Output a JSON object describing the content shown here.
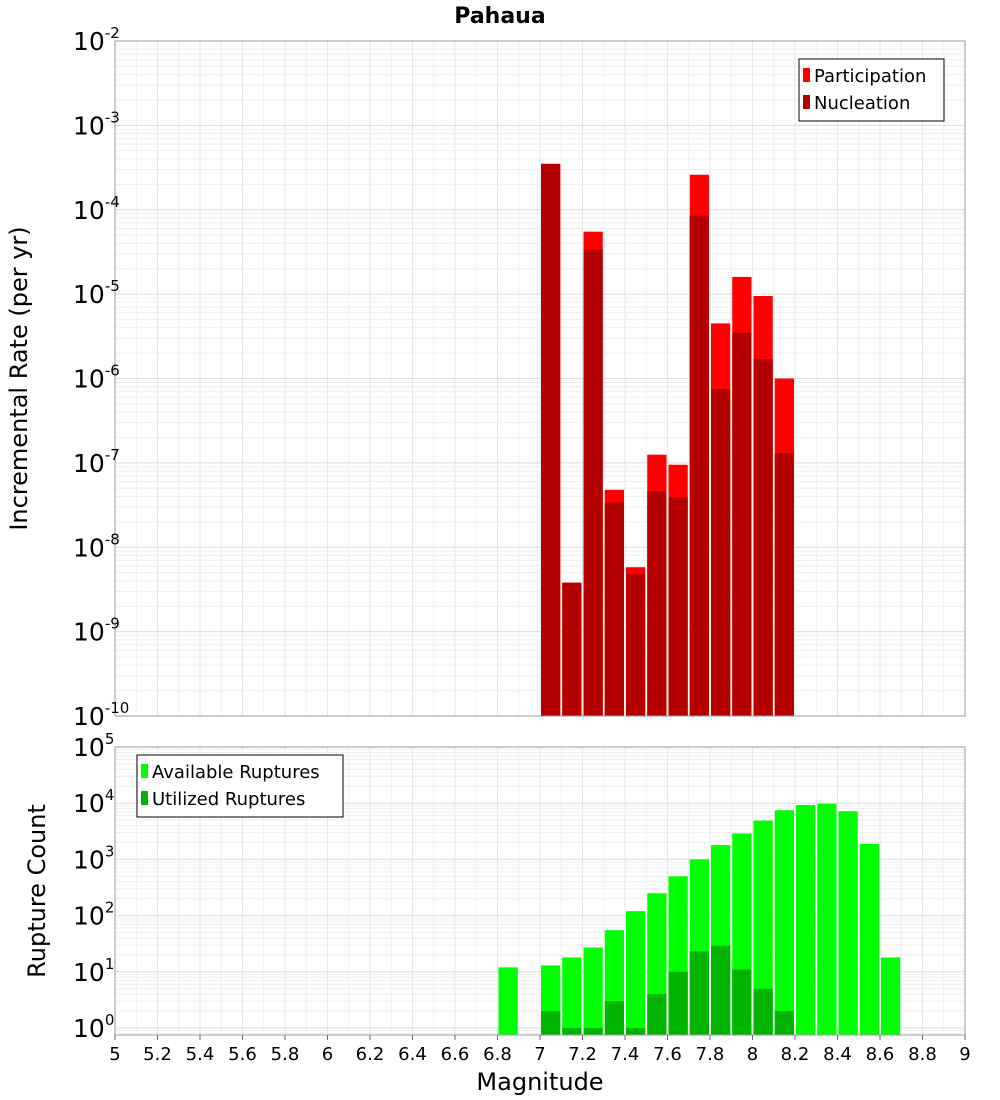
{
  "chart_data": [
    {
      "type": "bar",
      "panel": "top",
      "title": "Pahaua",
      "ylabel": "Incremental Rate (per yr)",
      "xlabel": "",
      "xlim": [
        5,
        9
      ],
      "ylim": [
        1e-10,
        0.01
      ],
      "yscale": "log",
      "grid": true,
      "legend": "top-right",
      "bar_width": 0.1,
      "ytick_exponents": [
        "-10",
        "-9",
        "-8",
        "-7",
        "-6",
        "-5",
        "-4",
        "-3",
        "-2"
      ],
      "ytick_base": "10",
      "x": [
        7.05,
        7.15,
        7.25,
        7.35,
        7.45,
        7.55,
        7.65,
        7.75,
        7.85,
        7.95,
        8.05,
        8.15
      ],
      "series": [
        {
          "name": "Participation",
          "color": "#ff0000",
          "values": [
            0.00035,
            3.8e-09,
            5.5e-05,
            4.8e-08,
            5.8e-09,
            1.25e-07,
            9.5e-08,
            0.00026,
            4.5e-06,
            1.6e-05,
            9.5e-06,
            1e-06
          ]
        },
        {
          "name": "Nucleation",
          "color": "#b40000",
          "values": [
            0.00035,
            3.8e-09,
            3.4e-05,
            3.4e-08,
            4.8e-09,
            4.6e-08,
            3.9e-08,
            8.5e-05,
            7.5e-07,
            3.5e-06,
            1.7e-06,
            1.3e-07
          ]
        }
      ]
    },
    {
      "type": "bar",
      "panel": "bottom",
      "title": "",
      "ylabel": "Rupture Count",
      "xlabel": "Magnitude",
      "xlim": [
        5,
        9
      ],
      "ylim": [
        0.75,
        100000.0
      ],
      "yscale": "log",
      "grid": true,
      "legend": "top-left",
      "bar_width": 0.1,
      "ytick_exponents": [
        "0",
        "1",
        "2",
        "3",
        "4",
        "5"
      ],
      "ytick_base": "10",
      "xticks": [
        "5",
        "5.2",
        "5.4",
        "5.6",
        "5.8",
        "6",
        "6.2",
        "6.4",
        "6.6",
        "6.8",
        "7",
        "7.2",
        "7.4",
        "7.6",
        "7.8",
        "8",
        "8.2",
        "8.4",
        "8.6",
        "8.8",
        "9"
      ],
      "series": [
        {
          "name": "Available Ruptures",
          "color": "#00ff00",
          "x": [
            6.85,
            7.05,
            7.15,
            7.25,
            7.35,
            7.45,
            7.55,
            7.65,
            7.75,
            7.85,
            7.95,
            8.05,
            8.15,
            8.25,
            8.35,
            8.45,
            8.55,
            8.65
          ],
          "values": [
            12,
            13,
            18,
            27,
            55,
            120,
            250,
            500,
            1000,
            1800,
            2900,
            4900,
            7500,
            9300,
            9800,
            7200,
            1900,
            18
          ]
        },
        {
          "name": "Utilized Ruptures",
          "color": "#00b400",
          "x": [
            7.05,
            7.15,
            7.25,
            7.35,
            7.45,
            7.55,
            7.65,
            7.75,
            7.85,
            7.95,
            8.05,
            8.15
          ],
          "values": [
            2,
            1,
            1,
            3,
            1,
            4,
            10,
            23,
            29,
            11,
            5,
            2
          ]
        }
      ]
    }
  ]
}
